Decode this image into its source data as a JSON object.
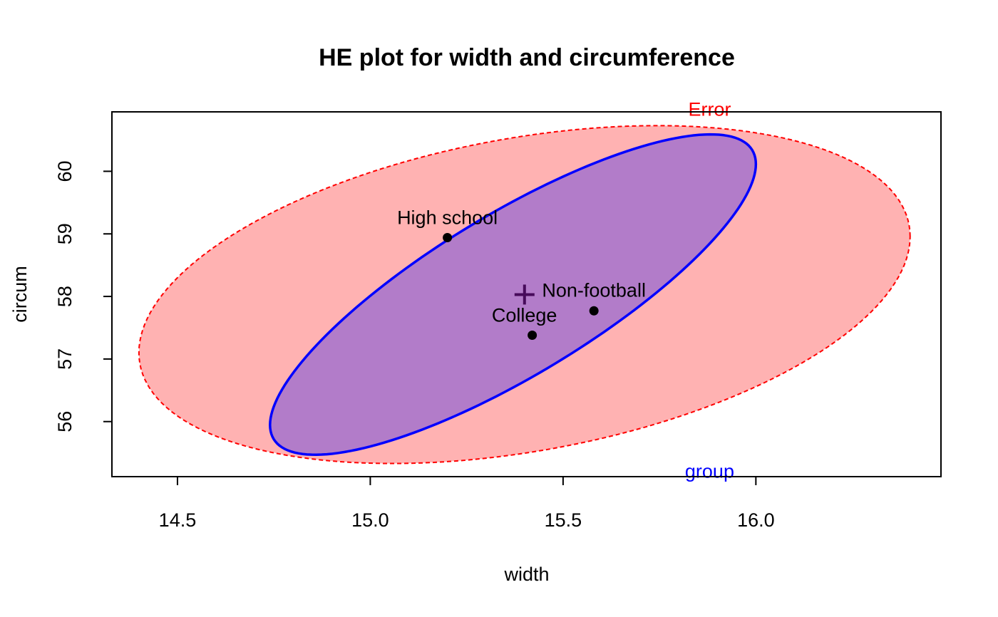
{
  "chart_data": {
    "type": "scatter",
    "title": "HE plot for width and circumference",
    "xlabel": "width",
    "ylabel": "circum",
    "xlim": [
      14.33,
      16.48
    ],
    "ylim": [
      55.12,
      60.95
    ],
    "x_ticks": [
      14.5,
      15.0,
      15.5,
      16.0
    ],
    "x_tick_labels": [
      "14.5",
      "15.0",
      "15.5",
      "16.0"
    ],
    "y_ticks": [
      56,
      57,
      58,
      59,
      60
    ],
    "y_tick_labels": [
      "56",
      "57",
      "58",
      "59",
      "60"
    ],
    "grid": false,
    "points": [
      {
        "label": "High school",
        "x": 15.2,
        "y": 58.94
      },
      {
        "label": "College",
        "x": 15.42,
        "y": 57.38
      },
      {
        "label": "Non-football",
        "x": 15.58,
        "y": 57.77
      }
    ],
    "grand_mean": {
      "x": 15.4,
      "y": 58.03
    },
    "ellipses": [
      {
        "name": "Error",
        "label": "Error",
        "color": "#ff0000",
        "fill": "#ff0000",
        "fill_opacity": 0.3,
        "line_style": "dashed",
        "center": {
          "x": 15.4,
          "y": 58.03
        },
        "x_range": [
          14.4,
          16.4
        ],
        "y_range": [
          55.33,
          60.73
        ]
      },
      {
        "name": "group",
        "label": "group",
        "color": "#0000ff",
        "fill": "#0000ff",
        "fill_opacity": 0.3,
        "line_style": "solid",
        "center": {
          "x": 15.4,
          "y": 58.03
        },
        "x_range": [
          14.74,
          16.0
        ],
        "y_range": [
          55.47,
          60.59
        ]
      }
    ]
  }
}
